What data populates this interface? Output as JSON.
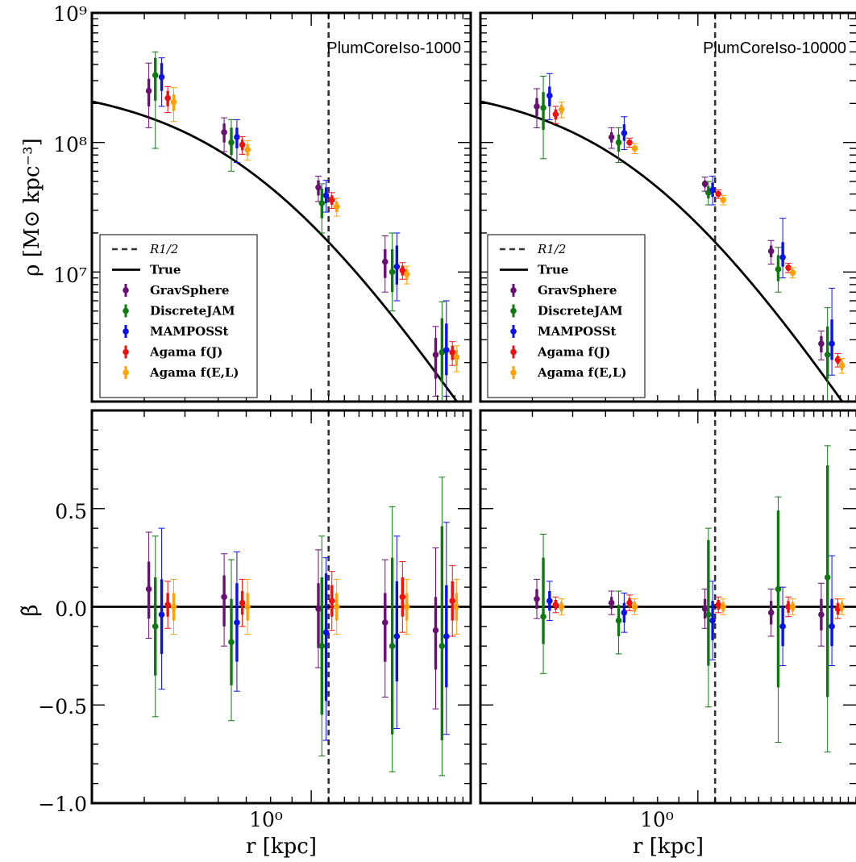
{
  "colors": {
    "GravSphere": "#6a0f73",
    "DiscreteJAM": "#0f7a0f",
    "MAMPOSSt": "#0a10ee",
    "Agama f(J)": "#f01010",
    "Agama f(E,L)": "#ffa20a",
    "true": "#000000"
  },
  "labels": {
    "ylabel_top": "ρ [M⊙ kpc⁻³]",
    "ylabel_bottom": "β̃",
    "xlabel": "r [kpc]",
    "rhalf": "R1/2",
    "true": "True"
  },
  "legend": {
    "entries": [
      {
        "key": "rhalf",
        "text": "R1/2",
        "italic": true
      },
      {
        "key": "true",
        "text": "True"
      },
      {
        "key": "GravSphere",
        "text": "GravSphere"
      },
      {
        "key": "DiscreteJAM",
        "text": "DiscreteJAM"
      },
      {
        "key": "MAMPOSSt",
        "text": "MAMPOSSt"
      },
      {
        "key": "Agama f(J)",
        "text": "Agama f(J)"
      },
      {
        "key": "Agama f(E,L)",
        "text": "Agama f(E,L)"
      }
    ]
  },
  "chart_data": [
    {
      "type": "scatter",
      "title": "PlumCoreIso-1000",
      "panel": "top-left",
      "xscale": "log",
      "yscale": "log",
      "xlim": [
        0.3,
        2.4
      ],
      "ylim": [
        1000000,
        1000000000
      ],
      "ytick_labels": [
        "10⁷",
        "10⁸",
        "10⁹"
      ],
      "rhalf": 1.1,
      "legend_position": "lower-left",
      "true_curve": {
        "rho0": 300000000,
        "a": 0.75
      },
      "series": [
        {
          "name": "GravSphere",
          "x": [
            0.41,
            0.62,
            1.04,
            1.5,
            1.98
          ],
          "y": [
            250000000,
            120000000,
            45000000,
            12000000,
            2300000
          ],
          "err_lo": [
            60000000,
            20000000,
            6000000,
            3000000,
            800000
          ],
          "err_hi": [
            60000000,
            20000000,
            6000000,
            3000000,
            800000
          ],
          "err_lo_outer": [
            120000000,
            35000000,
            10000000,
            5000000,
            1200000
          ],
          "err_hi_outer": [
            160000000,
            35000000,
            10000000,
            7000000,
            1500000
          ]
        },
        {
          "name": "DiscreteJAM",
          "x": [
            0.425,
            0.645,
            1.06,
            1.56,
            2.05
          ],
          "y": [
            330000000,
            100000000,
            34000000,
            10000000,
            2400000
          ],
          "err_lo": [
            120000000,
            20000000,
            8000000,
            3000000,
            1000000
          ],
          "err_hi": [
            120000000,
            30000000,
            10000000,
            5000000,
            2000000
          ],
          "err_lo_outer": [
            240000000,
            40000000,
            14000000,
            5000000,
            1600000
          ],
          "err_hi_outer": [
            170000000,
            50000000,
            14000000,
            10000000,
            3500000
          ]
        },
        {
          "name": "MAMPOSSt",
          "x": [
            0.44,
            0.665,
            1.085,
            1.6,
            2.1
          ],
          "y": [
            320000000,
            110000000,
            39000000,
            11000000,
            2500000
          ],
          "err_lo": [
            70000000,
            20000000,
            5000000,
            3000000,
            900000
          ],
          "err_hi": [
            90000000,
            20000000,
            6000000,
            5000000,
            1500000
          ],
          "err_lo_outer": [
            130000000,
            40000000,
            10000000,
            5000000,
            1400000
          ],
          "err_hi_outer": [
            130000000,
            40000000,
            12000000,
            9000000,
            3500000
          ]
        },
        {
          "name": "Agama f(J)",
          "x": [
            0.455,
            0.685,
            1.12,
            1.65,
            2.17
          ],
          "y": [
            220000000,
            96000000,
            36000000,
            10300000,
            2400000
          ],
          "err_lo": [
            30000000,
            9000000,
            3000000,
            900000,
            300000
          ],
          "err_hi": [
            30000000,
            9000000,
            3000000,
            900000,
            300000
          ],
          "err_lo_outer": [
            50000000,
            15000000,
            5000000,
            1500000,
            500000
          ],
          "err_hi_outer": [
            50000000,
            15000000,
            5000000,
            1500000,
            500000
          ]
        },
        {
          "name": "Agama f(E,L)",
          "x": [
            0.47,
            0.705,
            1.15,
            1.69,
            2.22
          ],
          "y": [
            205000000,
            88000000,
            32000000,
            9600000,
            2200000
          ],
          "err_lo": [
            30000000,
            9000000,
            3000000,
            900000,
            300000
          ],
          "err_hi": [
            30000000,
            9000000,
            3000000,
            900000,
            300000
          ],
          "err_lo_outer": [
            60000000,
            15000000,
            5000000,
            1500000,
            500000
          ],
          "err_hi_outer": [
            60000000,
            15000000,
            5000000,
            1500000,
            500000
          ]
        }
      ]
    },
    {
      "type": "scatter",
      "title": "PlumCoreIso-10000",
      "panel": "top-right",
      "xscale": "log",
      "yscale": "log",
      "xlim": [
        0.3,
        2.4
      ],
      "ylim": [
        1000000,
        1000000000
      ],
      "rhalf": 1.1,
      "legend_position": "lower-left",
      "true_curve": {
        "rho0": 300000000,
        "a": 0.75
      },
      "series": [
        {
          "name": "GravSphere",
          "x": [
            0.41,
            0.62,
            1.04,
            1.5,
            1.98
          ],
          "y": [
            190000000,
            110000000,
            48000000,
            14500000,
            2800000
          ],
          "err_lo": [
            30000000,
            10000000,
            3000000,
            1500000,
            400000
          ],
          "err_hi": [
            30000000,
            10000000,
            3000000,
            1500000,
            400000
          ],
          "err_lo_outer": [
            60000000,
            20000000,
            6000000,
            3000000,
            700000
          ],
          "err_hi_outer": [
            70000000,
            20000000,
            6000000,
            3000000,
            700000
          ]
        },
        {
          "name": "DiscreteJAM",
          "x": [
            0.425,
            0.645,
            1.06,
            1.56,
            2.05
          ],
          "y": [
            185000000,
            100000000,
            41000000,
            10500000,
            2300000
          ],
          "err_lo": [
            60000000,
            15000000,
            4000000,
            2000000,
            800000
          ],
          "err_hi": [
            60000000,
            15000000,
            5000000,
            3000000,
            1500000
          ],
          "err_lo_outer": [
            110000000,
            30000000,
            8000000,
            3500000,
            1300000
          ],
          "err_hi_outer": [
            140000000,
            30000000,
            9000000,
            5000000,
            3000000
          ]
        },
        {
          "name": "MAMPOSSt",
          "x": [
            0.44,
            0.665,
            1.085,
            1.6,
            2.1
          ],
          "y": [
            230000000,
            118000000,
            43000000,
            13000000,
            2800000
          ],
          "err_lo": [
            40000000,
            15000000,
            5000000,
            2000000,
            700000
          ],
          "err_hi": [
            40000000,
            20000000,
            6000000,
            4000000,
            1500000
          ],
          "err_lo_outer": [
            80000000,
            30000000,
            10000000,
            4000000,
            1200000
          ],
          "err_hi_outer": [
            110000000,
            40000000,
            12000000,
            13000000,
            4700000
          ]
        },
        {
          "name": "Agama f(J)",
          "x": [
            0.455,
            0.685,
            1.12,
            1.65,
            2.17
          ],
          "y": [
            165000000,
            100000000,
            40000000,
            10800000,
            2100000
          ],
          "err_lo": [
            15000000,
            5000000,
            2000000,
            600000,
            150000
          ],
          "err_hi": [
            15000000,
            5000000,
            2000000,
            600000,
            150000
          ],
          "err_lo_outer": [
            25000000,
            8000000,
            3000000,
            900000,
            250000
          ],
          "err_hi_outer": [
            25000000,
            8000000,
            3000000,
            900000,
            250000
          ]
        },
        {
          "name": "Agama f(E,L)",
          "x": [
            0.47,
            0.705,
            1.15,
            1.69,
            2.22
          ],
          "y": [
            180000000,
            90000000,
            36000000,
            9900000,
            1900000
          ],
          "err_lo": [
            15000000,
            5000000,
            2000000,
            600000,
            150000
          ],
          "err_hi": [
            15000000,
            5000000,
            2000000,
            600000,
            150000
          ],
          "err_lo_outer": [
            25000000,
            8000000,
            3000000,
            900000,
            250000
          ],
          "err_hi_outer": [
            25000000,
            8000000,
            3000000,
            900000,
            250000
          ]
        }
      ]
    },
    {
      "type": "scatter",
      "panel": "bottom-left",
      "xscale": "log",
      "xlim": [
        0.3,
        2.4
      ],
      "ylim": [
        -1.0,
        1.0
      ],
      "xtick_labels": [
        "10⁰"
      ],
      "ytick_labels": [
        "−1.0",
        "−0.5",
        "0.0",
        "0.5"
      ],
      "rhalf": 1.1,
      "true_value": 0.0,
      "series": [
        {
          "name": "GravSphere",
          "x": [
            0.41,
            0.62,
            1.04,
            1.5,
            1.98
          ],
          "y": [
            0.09,
            0.05,
            -0.01,
            -0.08,
            -0.12
          ],
          "err_lo": [
            0.15,
            0.15,
            0.2,
            0.2,
            0.2
          ],
          "err_hi": [
            0.14,
            0.11,
            0.13,
            0.15,
            0.17
          ],
          "err_lo_outer": [
            0.25,
            0.25,
            0.3,
            0.38,
            0.4
          ],
          "err_hi_outer": [
            0.29,
            0.22,
            0.3,
            0.32,
            0.42
          ]
        },
        {
          "name": "DiscreteJAM",
          "x": [
            0.425,
            0.645,
            1.06,
            1.56,
            2.05
          ],
          "y": [
            -0.1,
            -0.18,
            -0.2,
            -0.2,
            -0.2
          ],
          "err_lo": [
            0.25,
            0.22,
            0.35,
            0.45,
            0.48
          ],
          "err_hi": [
            0.25,
            0.22,
            0.35,
            0.45,
            0.61
          ],
          "err_lo_outer": [
            0.46,
            0.4,
            0.56,
            0.64,
            0.66
          ],
          "err_hi_outer": [
            0.46,
            0.42,
            0.56,
            0.71,
            0.86
          ]
        },
        {
          "name": "MAMPOSSt",
          "x": [
            0.44,
            0.665,
            1.085,
            1.6,
            2.1
          ],
          "y": [
            -0.04,
            -0.08,
            -0.13,
            -0.15,
            -0.15
          ],
          "err_lo": [
            0.2,
            0.2,
            0.35,
            0.23,
            0.26
          ],
          "err_hi": [
            0.18,
            0.2,
            0.3,
            0.28,
            0.26
          ],
          "err_lo_outer": [
            0.38,
            0.35,
            0.55,
            0.47,
            0.5
          ],
          "err_hi_outer": [
            0.44,
            0.36,
            0.38,
            0.51,
            0.58
          ]
        },
        {
          "name": "Agama f(J)",
          "x": [
            0.455,
            0.685,
            1.12,
            1.65,
            2.17
          ],
          "y": [
            0.01,
            0.02,
            0.03,
            0.05,
            0.03
          ],
          "err_lo": [
            0.06,
            0.06,
            0.08,
            0.1,
            0.1
          ],
          "err_hi": [
            0.06,
            0.06,
            0.08,
            0.1,
            0.1
          ],
          "err_lo_outer": [
            0.12,
            0.12,
            0.15,
            0.18,
            0.18
          ],
          "err_hi_outer": [
            0.12,
            0.12,
            0.15,
            0.18,
            0.18
          ]
        },
        {
          "name": "Agama f(E,L)",
          "x": [
            0.47,
            0.705,
            1.15,
            1.69,
            2.22
          ],
          "y": [
            0.0,
            0.0,
            0.0,
            0.0,
            0.0
          ],
          "err_lo": [
            0.07,
            0.07,
            0.07,
            0.07,
            0.07
          ],
          "err_hi": [
            0.07,
            0.07,
            0.07,
            0.07,
            0.07
          ],
          "err_lo_outer": [
            0.14,
            0.14,
            0.14,
            0.14,
            0.14
          ],
          "err_hi_outer": [
            0.14,
            0.14,
            0.14,
            0.14,
            0.14
          ]
        }
      ]
    },
    {
      "type": "scatter",
      "panel": "bottom-right",
      "xscale": "log",
      "xlim": [
        0.3,
        2.4
      ],
      "ylim": [
        -1.0,
        1.0
      ],
      "xtick_labels": [
        "10⁰"
      ],
      "rhalf": 1.1,
      "true_value": 0.0,
      "series": [
        {
          "name": "GravSphere",
          "x": [
            0.41,
            0.62,
            1.04,
            1.5,
            1.98
          ],
          "y": [
            0.04,
            0.02,
            -0.01,
            -0.03,
            -0.04
          ],
          "err_lo": [
            0.05,
            0.03,
            0.05,
            0.06,
            0.08
          ],
          "err_hi": [
            0.05,
            0.03,
            0.05,
            0.06,
            0.08
          ],
          "err_lo_outer": [
            0.1,
            0.06,
            0.1,
            0.12,
            0.16
          ],
          "err_hi_outer": [
            0.1,
            0.06,
            0.1,
            0.12,
            0.16
          ]
        },
        {
          "name": "DiscreteJAM",
          "x": [
            0.425,
            0.645,
            1.06,
            1.56,
            2.05
          ],
          "y": [
            -0.05,
            -0.07,
            -0.04,
            0.09,
            0.15
          ],
          "err_lo": [
            0.14,
            0.08,
            0.26,
            0.5,
            0.61
          ],
          "err_hi": [
            0.3,
            0.08,
            0.38,
            0.4,
            0.57
          ],
          "err_lo_outer": [
            0.29,
            0.17,
            0.47,
            0.78,
            0.89
          ],
          "err_hi_outer": [
            0.42,
            0.15,
            0.44,
            0.47,
            0.67
          ]
        },
        {
          "name": "MAMPOSSt",
          "x": [
            0.44,
            0.665,
            1.085,
            1.6,
            2.1
          ],
          "y": [
            0.03,
            -0.03,
            -0.07,
            -0.1,
            -0.1
          ],
          "err_lo": [
            0.05,
            0.05,
            0.1,
            0.1,
            0.1
          ],
          "err_hi": [
            0.05,
            0.05,
            0.1,
            0.1,
            0.14
          ],
          "err_lo_outer": [
            0.1,
            0.1,
            0.2,
            0.2,
            0.2
          ],
          "err_hi_outer": [
            0.1,
            0.1,
            0.2,
            0.2,
            0.36
          ]
        },
        {
          "name": "Agama f(J)",
          "x": [
            0.455,
            0.685,
            1.12,
            1.65,
            2.17
          ],
          "y": [
            0.01,
            0.02,
            0.01,
            0.0,
            -0.01
          ],
          "err_lo": [
            0.025,
            0.025,
            0.025,
            0.03,
            0.03
          ],
          "err_hi": [
            0.025,
            0.025,
            0.025,
            0.03,
            0.03
          ],
          "err_lo_outer": [
            0.04,
            0.04,
            0.04,
            0.05,
            0.05
          ],
          "err_hi_outer": [
            0.04,
            0.04,
            0.04,
            0.05,
            0.05
          ]
        },
        {
          "name": "Agama f(E,L)",
          "x": [
            0.47,
            0.705,
            1.15,
            1.69,
            2.22
          ],
          "y": [
            0.0,
            0.0,
            0.0,
            0.0,
            0.0
          ],
          "err_lo": [
            0.025,
            0.025,
            0.025,
            0.025,
            0.025
          ],
          "err_hi": [
            0.025,
            0.025,
            0.025,
            0.025,
            0.025
          ],
          "err_lo_outer": [
            0.04,
            0.04,
            0.04,
            0.04,
            0.04
          ],
          "err_hi_outer": [
            0.04,
            0.04,
            0.04,
            0.04,
            0.04
          ]
        }
      ]
    }
  ]
}
